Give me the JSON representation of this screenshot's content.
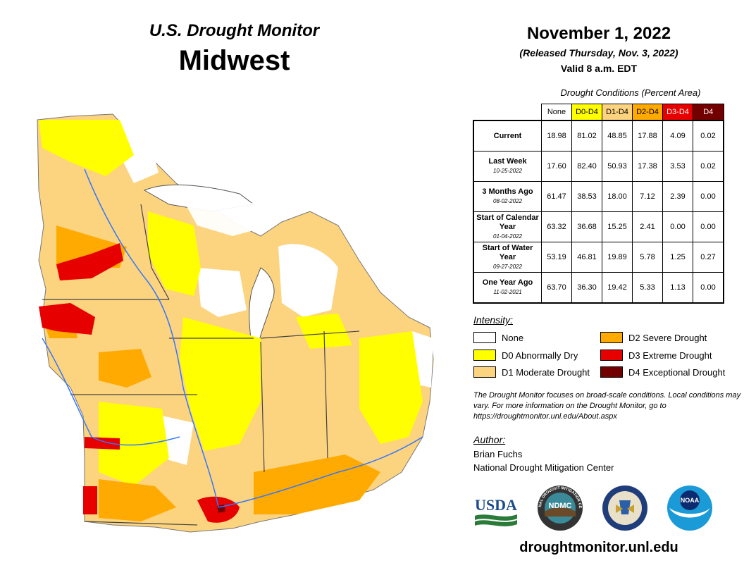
{
  "header": {
    "subtitle": "U.S. Drought Monitor",
    "region": "Midwest",
    "date": "November 1, 2022",
    "released": "(Released Thursday, Nov. 3, 2022)",
    "valid": "Valid 8 a.m. EDT"
  },
  "table": {
    "caption": "Drought Conditions (Percent Area)",
    "columns": [
      "None",
      "D0-D4",
      "D1-D4",
      "D2-D4",
      "D3-D4",
      "D4"
    ],
    "column_colors": [
      "#ffffff",
      "#ffff00",
      "#fcd37f",
      "#ffaa00",
      "#e60000",
      "#730000"
    ],
    "rows": [
      {
        "label": "Current",
        "sub": "",
        "values": [
          "18.98",
          "81.02",
          "48.85",
          "17.88",
          "4.09",
          "0.02"
        ]
      },
      {
        "label": "Last Week",
        "sub": "10-25-2022",
        "values": [
          "17.60",
          "82.40",
          "50.93",
          "17.38",
          "3.53",
          "0.02"
        ]
      },
      {
        "label": "3 Months Ago",
        "sub": "08-02-2022",
        "values": [
          "61.47",
          "38.53",
          "18.00",
          "7.12",
          "2.39",
          "0.00"
        ]
      },
      {
        "label": "Start of Calendar Year",
        "sub": "01-04-2022",
        "values": [
          "63.32",
          "36.68",
          "15.25",
          "2.41",
          "0.00",
          "0.00"
        ]
      },
      {
        "label": "Start of Water Year",
        "sub": "09-27-2022",
        "values": [
          "53.19",
          "46.81",
          "19.89",
          "5.78",
          "1.25",
          "0.27"
        ]
      },
      {
        "label": "One Year Ago",
        "sub": "11-02-2021",
        "values": [
          "63.70",
          "36.30",
          "19.42",
          "5.33",
          "1.13",
          "0.00"
        ]
      }
    ]
  },
  "legend": {
    "title": "Intensity:",
    "items": [
      {
        "label": "None",
        "color": "#ffffff"
      },
      {
        "label": "D0 Abnormally Dry",
        "color": "#ffff00"
      },
      {
        "label": "D1 Moderate Drought",
        "color": "#fcd37f"
      },
      {
        "label": "D2 Severe Drought",
        "color": "#ffaa00"
      },
      {
        "label": "D3 Extreme Drought",
        "color": "#e60000"
      },
      {
        "label": "D4 Exceptional Drought",
        "color": "#730000"
      }
    ]
  },
  "note": "The Drought Monitor focuses on broad-scale conditions. Local conditions may vary. For more information on the Drought Monitor, go to https://droughtmonitor.unl.edu/About.aspx",
  "author": {
    "title": "Author:",
    "name": "Brian Fuchs",
    "org": "National Drought Mitigation Center"
  },
  "logos": {
    "usda": "USDA",
    "ndmc": "NDMC",
    "ndmc_ring": "NATIONAL DROUGHT MITIGATION CENTER",
    "noaa": "NOAA"
  },
  "url": "droughtmonitor.unl.edu"
}
